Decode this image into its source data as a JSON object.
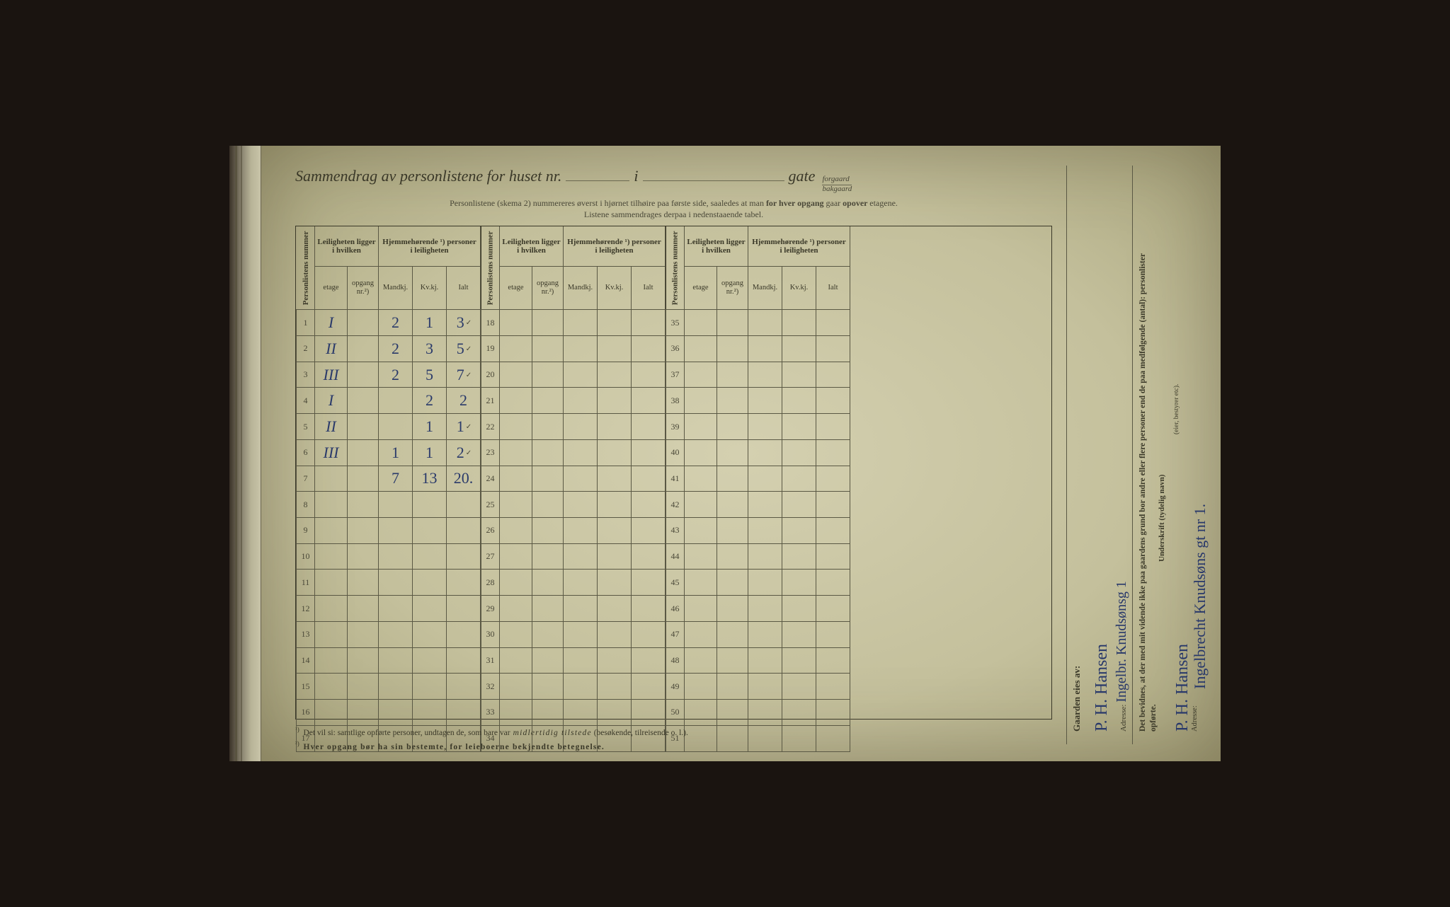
{
  "title": {
    "main": "Sammendrag av personlistene for huset nr.",
    "i": "i",
    "gate": "gate",
    "forgaard": "forgaard",
    "bakgaard": "bakgaard"
  },
  "subtitle_line1": "Personlistene (skema 2) nummereres øverst i hjørnet tilhøire paa første side, saaledes at man",
  "subtitle_bold": " for hver opgang ",
  "subtitle_line1b": "gaar",
  "subtitle_bold2": " opover ",
  "subtitle_line1c": "etagene.",
  "subtitle_line2": "Listene sammendrages derpaa i nedenstaaende tabel.",
  "headers": {
    "personlistens_nummer": "Personlistens nummer",
    "leiligheten": "Leiligheten ligger i hvilken",
    "hjemmehorende": "Hjemmehørende ¹) personer i leiligheten",
    "etage": "etage",
    "opgang": "opgang nr.²)",
    "mandkj": "Mandkj.",
    "kvkj": "Kv.kj.",
    "ialt": "Ialt"
  },
  "rows": [
    {
      "n": 1,
      "etage": "I",
      "m": "2",
      "k": "1",
      "i": "3",
      "tick": "✓"
    },
    {
      "n": 2,
      "etage": "II",
      "m": "2",
      "k": "3",
      "i": "5",
      "tick": "✓"
    },
    {
      "n": 3,
      "etage": "III",
      "m": "2",
      "k": "5",
      "i": "7",
      "tick": "✓"
    },
    {
      "n": 4,
      "etage": "I",
      "m": "",
      "k": "2",
      "i": "2",
      "tick": ""
    },
    {
      "n": 5,
      "etage": "II",
      "m": "",
      "k": "1",
      "i": "1",
      "tick": "✓"
    },
    {
      "n": 6,
      "etage": "III",
      "m": "1",
      "k": "1",
      "i": "2",
      "tick": "✓"
    },
    {
      "n": 7,
      "etage": "",
      "m": "7",
      "k": "13",
      "i": "20.",
      "tick": ""
    },
    {
      "n": 8
    },
    {
      "n": 9
    },
    {
      "n": 10
    },
    {
      "n": 11
    },
    {
      "n": 12
    },
    {
      "n": 13
    },
    {
      "n": 14
    },
    {
      "n": 15
    },
    {
      "n": 16
    },
    {
      "n": 17
    }
  ],
  "rows2_start": 18,
  "rows3_start": 35,
  "footnote1_mark": "¹)",
  "footnote1": "Det vil si: samtlige opførte personer, undtagen de, som bare var",
  "footnote1_em": " midlertidig tilstede",
  "footnote1_b": " (besøkende, tilreisende o. l.).",
  "footnote2_mark": "²)",
  "footnote2": "Hver opgang bør ha sin bestemte, for leieboerne bekjendte betegnelse.",
  "side": {
    "owner_label": "Gaarden eies av:",
    "owner_sig": "P. H. Hansen",
    "owner_addr_label": "Adresse:",
    "owner_addr": "Ingelbr. Knudsønsg 1",
    "attest": "Det bevidnes, at der med mit vidende ikke paa gaardens grund bor andre eller flere personer end de paa medfølgende (antal): personlister opførte.",
    "sign_label": "Underskrift (tydelig navn)",
    "sign": "P. H. Hansen",
    "role": "(eier, bestyrer etc).",
    "addr2_label": "Adresse:",
    "addr2": "Ingelbrecht Knudsøns gt nr 1."
  },
  "colors": {
    "ink": "#3a3828",
    "hand": "#2a3a6a",
    "paper": "#d4d0b0",
    "border": "#5a5844"
  }
}
